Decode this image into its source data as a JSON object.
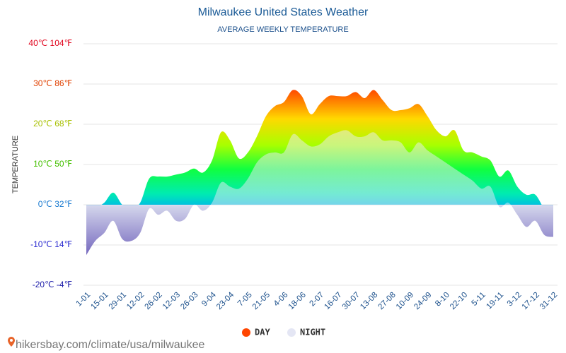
{
  "chart_data": {
    "type": "area",
    "title": "Milwaukee United States Weather",
    "subtitle": "AVERAGE WEEKLY TEMPERATURE",
    "y_label": "TEMPERATURE",
    "categories": [
      "1-01",
      null,
      "15-01",
      null,
      "29-01",
      null,
      "12-02",
      null,
      "26-02",
      null,
      "12-03",
      null,
      "26-03",
      null,
      "9-04",
      null,
      "23-04",
      null,
      "7-05",
      null,
      "21-05",
      null,
      "4-06",
      null,
      "18-06",
      null,
      "2-07",
      null,
      "16-07",
      null,
      "30-07",
      null,
      "13-08",
      null,
      "27-08",
      null,
      "10-09",
      null,
      "24-09",
      null,
      "8-10",
      null,
      "22-10",
      null,
      "5-11",
      null,
      "19-11",
      null,
      "3-12",
      null,
      "17-12",
      null,
      "31-12"
    ],
    "series": [
      {
        "name": "DAY",
        "color": "#ff4500",
        "values": [
          -3.5,
          -1,
          0.5,
          3,
          0,
          -1,
          0.5,
          6.5,
          7,
          7,
          7.5,
          8,
          9,
          8,
          11,
          18,
          16,
          11.5,
          13,
          17,
          22,
          24.5,
          25.5,
          28.5,
          27,
          22.5,
          25,
          27,
          27,
          27,
          28,
          26.5,
          28.5,
          26,
          23.5,
          23.5,
          24,
          25,
          22,
          18.5,
          17,
          18.5,
          13.5,
          13,
          12,
          11,
          7,
          8.5,
          4.5,
          2.5,
          2.5,
          -1,
          -3
        ]
      },
      {
        "name": "NIGHT",
        "color": "#e4e6f4",
        "values": [
          -12.5,
          -9,
          -7,
          -4,
          -8.5,
          -9,
          -7,
          -1,
          -2.5,
          -1.5,
          -4,
          -3.5,
          0,
          -1.5,
          0.5,
          5.5,
          4.5,
          4,
          6.5,
          10.5,
          12.5,
          13,
          13,
          17.5,
          16,
          14.5,
          15,
          17,
          18,
          18.5,
          17,
          17,
          18,
          16,
          16,
          15.5,
          13,
          15.5,
          13.5,
          12,
          10.5,
          9,
          7.5,
          6,
          4,
          4.5,
          -0.5,
          0.5,
          -2.5,
          -5.5,
          -4,
          -7.5,
          -8
        ]
      }
    ],
    "ylim": [
      -20,
      40
    ],
    "yticks": [
      {
        "value": -20,
        "label": "-20℃ -4℉"
      },
      {
        "value": -10,
        "label": "-10℃ 14℉"
      },
      {
        "value": 0,
        "label": "0℃ 32℉"
      },
      {
        "value": 10,
        "label": "10℃ 50℉"
      },
      {
        "value": 20,
        "label": "20℃ 68℉"
      },
      {
        "value": 30,
        "label": "30℃ 86℉"
      },
      {
        "value": 40,
        "label": "40℃ 104℉"
      }
    ],
    "ytick_colors": [
      "#1a1aa8",
      "#2a2ad0",
      "#1a7ad0",
      "#44c000",
      "#a8c000",
      "#e04000",
      "#e0001a"
    ],
    "grid": true,
    "legend": "bottom",
    "source": "hikersbay.com/climate/usa/milwaukee"
  }
}
